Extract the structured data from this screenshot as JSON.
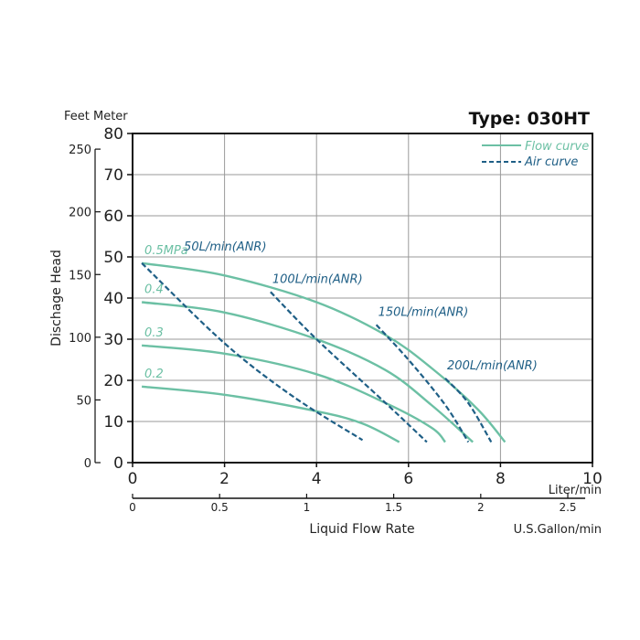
{
  "chart_data": {
    "type": "line",
    "title": "Type: 030HT",
    "y_units_label": "Feet Meter",
    "ylabel": "Dischage Head",
    "xlabel": "Liquid Flow Rate",
    "x_primary_unit": "Liter/min",
    "x_secondary_unit": "U.S.Gallon/min",
    "xlim": [
      0,
      10
    ],
    "ylim": [
      0,
      80
    ],
    "x_ticks": [
      "0",
      "2",
      "4",
      "6",
      "8",
      "10"
    ],
    "y_ticks_meter": [
      "0",
      "10",
      "20",
      "30",
      "40",
      "50",
      "60",
      "70",
      "80"
    ],
    "y_ticks_feet": [
      "0",
      "50",
      "100",
      "150",
      "200",
      "250"
    ],
    "x2_ticks": [
      "0",
      "0.5",
      "1",
      "1.5",
      "2",
      "2.5"
    ],
    "grid": true,
    "legend": {
      "position": "top-right",
      "flow_label": "Flow curve",
      "air_label": "Air curve"
    },
    "colors": {
      "flow": "#6cc0a4",
      "air": "#1f5f86",
      "grid": "#9a9a9a"
    },
    "flow_curves": [
      {
        "name": "0.5MPa",
        "points": [
          [
            0.2,
            48.5
          ],
          [
            2,
            45.5
          ],
          [
            4,
            39
          ],
          [
            5.5,
            31
          ],
          [
            6.5,
            23
          ],
          [
            7.5,
            13
          ],
          [
            8.1,
            5
          ]
        ]
      },
      {
        "name": "0.4",
        "points": [
          [
            0.2,
            39
          ],
          [
            2,
            36.5
          ],
          [
            4,
            30
          ],
          [
            5.5,
            22.5
          ],
          [
            6.5,
            14
          ],
          [
            7.4,
            5
          ]
        ]
      },
      {
        "name": "0.3",
        "points": [
          [
            0.2,
            28.5
          ],
          [
            2,
            26.5
          ],
          [
            4,
            21.5
          ],
          [
            5.5,
            14.5
          ],
          [
            6.5,
            8.5
          ],
          [
            6.8,
            5
          ]
        ]
      },
      {
        "name": "0.2",
        "points": [
          [
            0.2,
            18.5
          ],
          [
            2,
            16.5
          ],
          [
            4,
            12.5
          ],
          [
            5,
            9.5
          ],
          [
            5.8,
            5
          ]
        ]
      }
    ],
    "air_curves": [
      {
        "name": "50L/min(ANR)",
        "points": [
          [
            0.2,
            48.5
          ],
          [
            2,
            29
          ],
          [
            3.5,
            16
          ],
          [
            5,
            5.5
          ]
        ]
      },
      {
        "name": "100L/min(ANR)",
        "points": [
          [
            3.0,
            41.5
          ],
          [
            4,
            30
          ],
          [
            5.5,
            14.5
          ],
          [
            6.4,
            5
          ]
        ]
      },
      {
        "name": "150L/min(ANR)",
        "points": [
          [
            5.3,
            33.5
          ],
          [
            6,
            25
          ],
          [
            6.8,
            14
          ],
          [
            7.3,
            5
          ]
        ]
      },
      {
        "name": "200L/min(ANR)",
        "points": [
          [
            6.8,
            20.5
          ],
          [
            7.3,
            14.5
          ],
          [
            7.8,
            5
          ]
        ]
      }
    ]
  }
}
